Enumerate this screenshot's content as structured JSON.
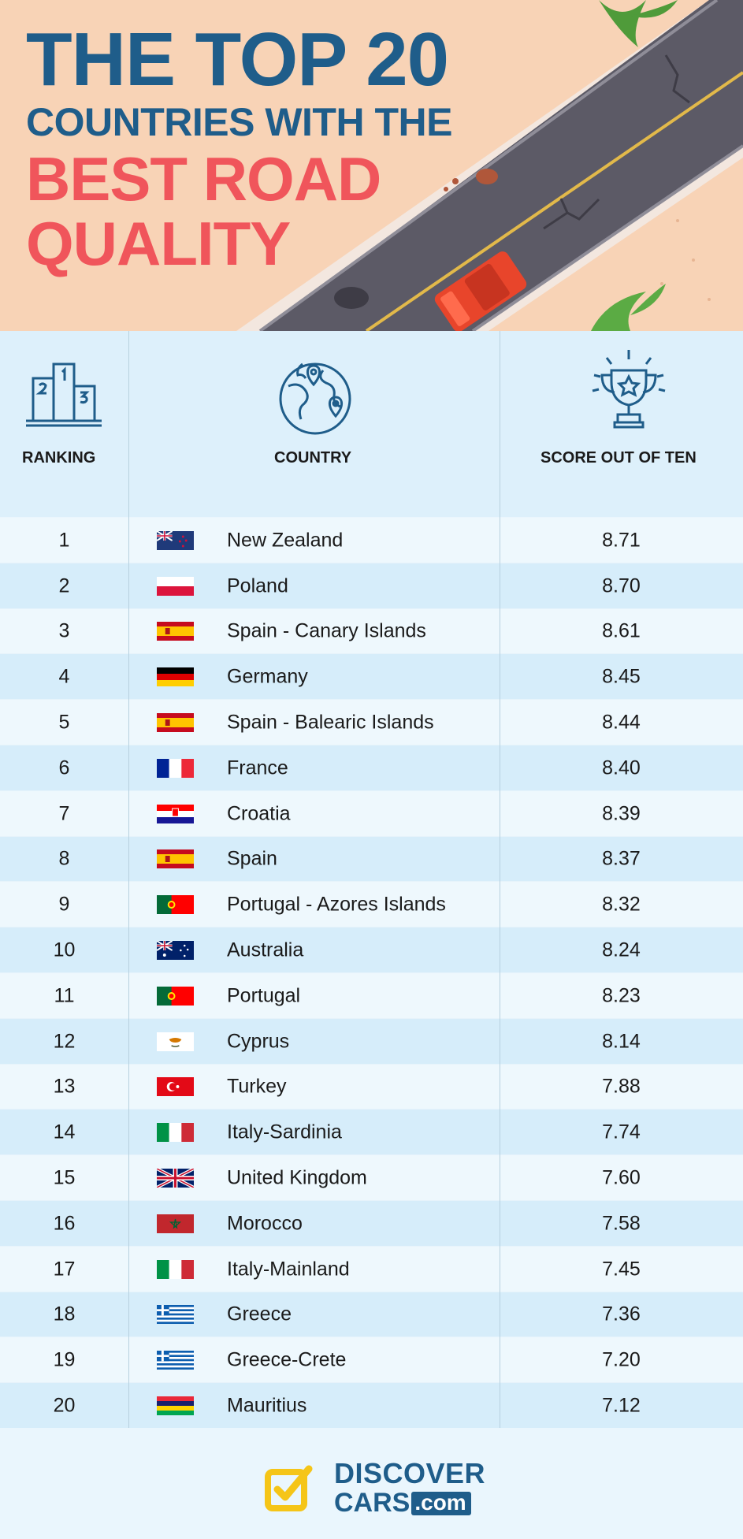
{
  "title": {
    "line1": "THE TOP 20",
    "line2": "COUNTRIES WITH THE",
    "line3": "BEST ROAD",
    "line4": "QUALITY"
  },
  "columns": {
    "ranking": "RANKING",
    "country": "COUNTRY",
    "score": "SCORE OUT OF TEN"
  },
  "icons": {
    "ranking": "podium-icon",
    "country": "globe-pin-icon",
    "score": "trophy-icon"
  },
  "rows": [
    {
      "rank": "1",
      "flag": "new-zealand-flag-icon",
      "country": "New Zealand",
      "score": "8.71"
    },
    {
      "rank": "2",
      "flag": "poland-flag-icon",
      "country": "Poland",
      "score": "8.70"
    },
    {
      "rank": "3",
      "flag": "spain-flag-icon",
      "country": "Spain - Canary Islands",
      "score": "8.61"
    },
    {
      "rank": "4",
      "flag": "germany-flag-icon",
      "country": "Germany",
      "score": "8.45"
    },
    {
      "rank": "5",
      "flag": "spain-flag-icon",
      "country": "Spain - Balearic Islands",
      "score": "8.44"
    },
    {
      "rank": "6",
      "flag": "france-flag-icon",
      "country": "France",
      "score": "8.40"
    },
    {
      "rank": "7",
      "flag": "croatia-flag-icon",
      "country": "Croatia",
      "score": "8.39"
    },
    {
      "rank": "8",
      "flag": "spain-flag-icon",
      "country": "Spain",
      "score": "8.37"
    },
    {
      "rank": "9",
      "flag": "portugal-flag-icon",
      "country": "Portugal - Azores Islands",
      "score": "8.32"
    },
    {
      "rank": "10",
      "flag": "australia-flag-icon",
      "country": "Australia",
      "score": "8.24"
    },
    {
      "rank": "11",
      "flag": "portugal-flag-icon",
      "country": "Portugal",
      "score": "8.23"
    },
    {
      "rank": "12",
      "flag": "cyprus-flag-icon",
      "country": "Cyprus",
      "score": "8.14"
    },
    {
      "rank": "13",
      "flag": "turkey-flag-icon",
      "country": "Turkey",
      "score": "7.88"
    },
    {
      "rank": "14",
      "flag": "italy-flag-icon",
      "country": "Italy-Sardinia",
      "score": "7.74"
    },
    {
      "rank": "15",
      "flag": "united-kingdom-flag-icon",
      "country": "United Kingdom",
      "score": "7.60"
    },
    {
      "rank": "16",
      "flag": "morocco-flag-icon",
      "country": "Morocco",
      "score": "7.58"
    },
    {
      "rank": "17",
      "flag": "italy-flag-icon",
      "country": "Italy-Mainland",
      "score": "7.45"
    },
    {
      "rank": "18",
      "flag": "greece-flag-icon",
      "country": "Greece",
      "score": "7.36"
    },
    {
      "rank": "19",
      "flag": "greece-flag-icon",
      "country": "Greece-Crete",
      "score": "7.20"
    },
    {
      "rank": "20",
      "flag": "mauritius-flag-icon",
      "country": "Mauritius",
      "score": "7.12"
    }
  ],
  "footer": {
    "brand_line1": "DISCOVER",
    "brand_line2": "CARS",
    "brand_domain": ".com"
  },
  "colors": {
    "title_blue": "#1f5d8a",
    "title_red": "#f0555b",
    "header_bg": "#f8d3b6",
    "row_light": "#eef8fd",
    "row_dark": "#d6edfa",
    "logo_yellow": "#f5c518"
  }
}
